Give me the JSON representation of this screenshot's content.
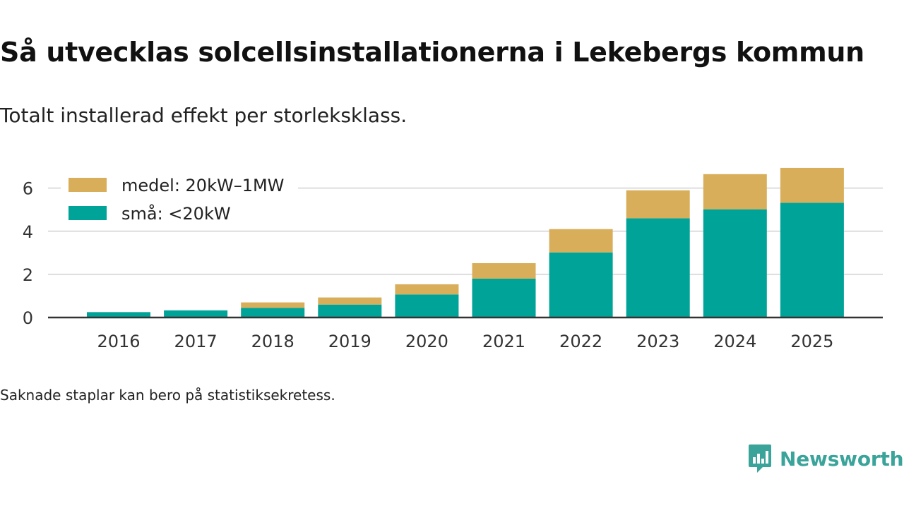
{
  "header": {
    "title": "Så utvecklas solcellsinstallationerna i Lekebergs kommun",
    "subtitle": "Totalt installerad effekt per storleksklass."
  },
  "footer": {
    "note": "Saknade staplar kan bero på statistiksekretess.",
    "brand": "Newsworthy"
  },
  "colors": {
    "small": "#00a398",
    "medium": "#d9ae5b",
    "grid": "#dddddd",
    "axis": "#333333",
    "brand": "#3aa39a"
  },
  "chart_data": {
    "type": "bar",
    "stacked": true,
    "title": "Så utvecklas solcellsinstallationerna i Lekebergs kommun",
    "subtitle": "Totalt installerad effekt per storleksklass.",
    "xlabel": "",
    "ylabel": "",
    "categories": [
      "2016",
      "2017",
      "2018",
      "2019",
      "2020",
      "2021",
      "2022",
      "2023",
      "2024",
      "2025"
    ],
    "series": [
      {
        "name": "små: <20kW",
        "values": [
          0.25,
          0.33,
          0.45,
          0.6,
          1.07,
          1.8,
          3.02,
          4.6,
          5.02,
          5.32
        ]
      },
      {
        "name": "medel: 20kW–1MW",
        "values": [
          0.0,
          0.0,
          0.25,
          0.33,
          0.47,
          0.72,
          1.08,
          1.3,
          1.63,
          1.62
        ]
      }
    ],
    "ylim": [
      0,
      7.2
    ],
    "yticks": [
      "0",
      "2",
      "4",
      "6"
    ],
    "grid": true,
    "legend_position": "top-left"
  }
}
